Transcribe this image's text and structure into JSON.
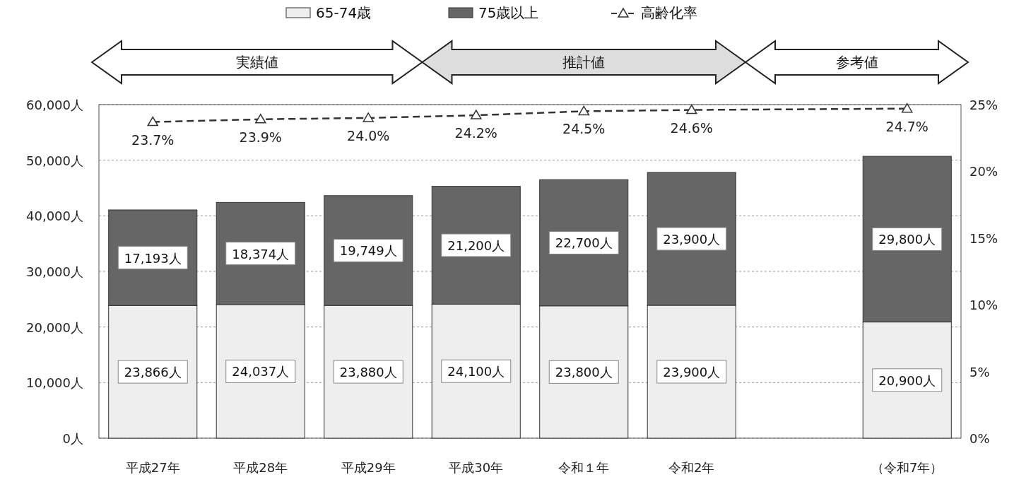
{
  "chart_data": {
    "type": "bar",
    "stacked": true,
    "categories": [
      "平成27年",
      "平成28年",
      "平成29年",
      "平成30年",
      "令和１年",
      "令和2年",
      null,
      "（令和7年）"
    ],
    "series": [
      {
        "name": "65-74歳",
        "color": "#eeeeee",
        "values": [
          23866,
          24037,
          23880,
          24100,
          23800,
          23900,
          null,
          20900
        ],
        "value_labels": [
          "23,866人",
          "24,037人",
          "23,880人",
          "24,100人",
          "23,800人",
          "23,900人",
          null,
          "20,900人"
        ]
      },
      {
        "name": "75歳以上",
        "color": "#666666",
        "values": [
          17193,
          18374,
          19749,
          21200,
          22700,
          23900,
          null,
          29800
        ],
        "value_labels": [
          "17,193人",
          "18,374人",
          "19,749人",
          "21,200人",
          "22,700人",
          "23,900人",
          null,
          "29,800人"
        ]
      },
      {
        "name": "高齢化率",
        "type": "line",
        "axis": "y2",
        "color": "#333333",
        "marker": "triangle",
        "line_style": "dashed",
        "values": [
          23.7,
          23.9,
          24.0,
          24.2,
          24.5,
          24.6,
          null,
          24.7
        ],
        "value_labels": [
          "23.7%",
          "23.9%",
          "24.0%",
          "24.2%",
          "24.5%",
          "24.6%",
          null,
          "24.7%"
        ]
      }
    ],
    "ylim": [
      0,
      60000
    ],
    "yticks": [
      {
        "value": 0,
        "label": "0人"
      },
      {
        "value": 10000,
        "label": "10,000人"
      },
      {
        "value": 20000,
        "label": "20,000人"
      },
      {
        "value": 30000,
        "label": "30,000人"
      },
      {
        "value": 40000,
        "label": "40,000人"
      },
      {
        "value": 50000,
        "label": "50,000人"
      },
      {
        "value": 60000,
        "label": "60,000人"
      }
    ],
    "y2lim": [
      0,
      25
    ],
    "y2ticks": [
      {
        "value": 0,
        "label": "0%"
      },
      {
        "value": 5,
        "label": "5%"
      },
      {
        "value": 10,
        "label": "10%"
      },
      {
        "value": 15,
        "label": "15%"
      },
      {
        "value": 20,
        "label": "20%"
      },
      {
        "value": 25,
        "label": "25%"
      }
    ],
    "annotations": [
      "実績値",
      "推計値",
      "参考値"
    ],
    "grid": "y",
    "legend": "top"
  }
}
